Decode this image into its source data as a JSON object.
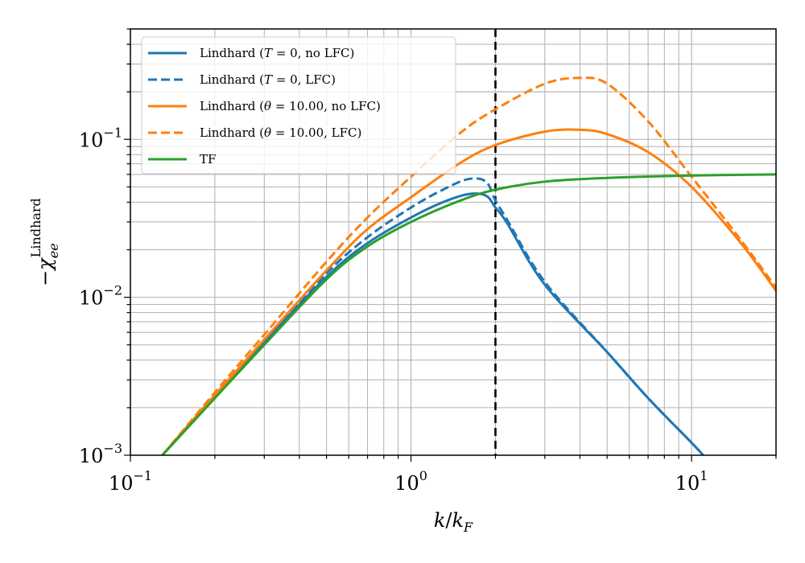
{
  "chart_data": {
    "type": "line",
    "title": "",
    "xlabel": "k/k_F",
    "ylabel": "−χ_ee^Lindhard",
    "xscale": "log",
    "yscale": "log",
    "xlim": [
      0.1,
      20
    ],
    "ylim": [
      0.001,
      0.5
    ],
    "grid": true,
    "grid_minor": true,
    "legend_position": "top-left",
    "x_ticks": [
      {
        "value": 0.1,
        "base": "10",
        "exp": "−1"
      },
      {
        "value": 1,
        "base": "10",
        "exp": "0"
      },
      {
        "value": 10,
        "base": "10",
        "exp": "1"
      }
    ],
    "y_ticks": [
      {
        "value": 0.001,
        "base": "10",
        "exp": "−3"
      },
      {
        "value": 0.01,
        "base": "10",
        "exp": "−2"
      },
      {
        "value": 0.1,
        "base": "10",
        "exp": "−1"
      }
    ],
    "vline": {
      "x": 2.0,
      "color": "#000000",
      "style": "dashed"
    },
    "series": [
      {
        "name": "Lindhard (T = 0, no LFC)",
        "color": "#1f77b4",
        "style": "solid",
        "x": [
          0.13,
          0.2,
          0.3,
          0.5,
          0.7,
          1.0,
          1.3,
          1.6,
          1.85,
          2.0,
          2.2,
          3.0,
          5.0,
          7.0,
          10.0,
          11.0
        ],
        "y": [
          0.001,
          0.0024,
          0.0052,
          0.0135,
          0.022,
          0.032,
          0.04,
          0.045,
          0.044,
          0.037,
          0.0295,
          0.012,
          0.0045,
          0.0023,
          0.0012,
          0.001
        ]
      },
      {
        "name": "Lindhard (T = 0, LFC)",
        "color": "#1f77b4",
        "style": "dashed",
        "x": [
          0.13,
          0.2,
          0.3,
          0.5,
          0.7,
          1.0,
          1.3,
          1.6,
          1.85,
          2.0,
          2.2,
          3.0,
          5.0,
          7.0,
          10.0,
          11.0
        ],
        "y": [
          0.001,
          0.0024,
          0.0053,
          0.0142,
          0.024,
          0.037,
          0.048,
          0.056,
          0.054,
          0.041,
          0.031,
          0.0125,
          0.0045,
          0.0023,
          0.0012,
          0.001
        ]
      },
      {
        "name": "Lindhard (θ = 10.00, no LFC)",
        "color": "#ff7f0e",
        "style": "solid",
        "x": [
          0.13,
          0.2,
          0.3,
          0.5,
          0.7,
          1.0,
          1.5,
          2.0,
          3.0,
          4.0,
          5.0,
          7.0,
          10.0,
          15.0,
          20.0
        ],
        "y": [
          0.001,
          0.0024,
          0.0054,
          0.0148,
          0.027,
          0.043,
          0.071,
          0.092,
          0.112,
          0.115,
          0.108,
          0.083,
          0.05,
          0.022,
          0.011
        ]
      },
      {
        "name": "Lindhard (θ = 10.00, LFC)",
        "color": "#ff7f0e",
        "style": "dashed",
        "x": [
          0.13,
          0.2,
          0.3,
          0.5,
          0.7,
          1.0,
          1.5,
          2.0,
          3.0,
          4.0,
          5.0,
          7.0,
          10.0,
          15.0,
          20.0
        ],
        "y": [
          0.001,
          0.0025,
          0.0058,
          0.0168,
          0.032,
          0.058,
          0.11,
          0.155,
          0.225,
          0.245,
          0.225,
          0.13,
          0.058,
          0.023,
          0.0115
        ]
      },
      {
        "name": "TF",
        "color": "#2ca02c",
        "style": "solid",
        "x": [
          0.13,
          0.2,
          0.3,
          0.5,
          0.7,
          1.0,
          1.5,
          2.0,
          3.0,
          5.0,
          10.0,
          20.0
        ],
        "y": [
          0.001,
          0.0023,
          0.005,
          0.013,
          0.021,
          0.03,
          0.041,
          0.048,
          0.054,
          0.057,
          0.059,
          0.06
        ]
      }
    ]
  },
  "legend": {
    "items": [
      {
        "prefix": "Lindhard (",
        "var": "T",
        "mid": " = 0, no LFC)"
      },
      {
        "prefix": "Lindhard (",
        "var": "T",
        "mid": " = 0, LFC)"
      },
      {
        "prefix": "Lindhard (",
        "var": "θ",
        "mid": " = 10.00, no LFC)"
      },
      {
        "prefix": "Lindhard (",
        "var": "θ",
        "mid": " = 10.00, LFC)"
      },
      {
        "prefix": "TF",
        "var": "",
        "mid": ""
      }
    ]
  }
}
